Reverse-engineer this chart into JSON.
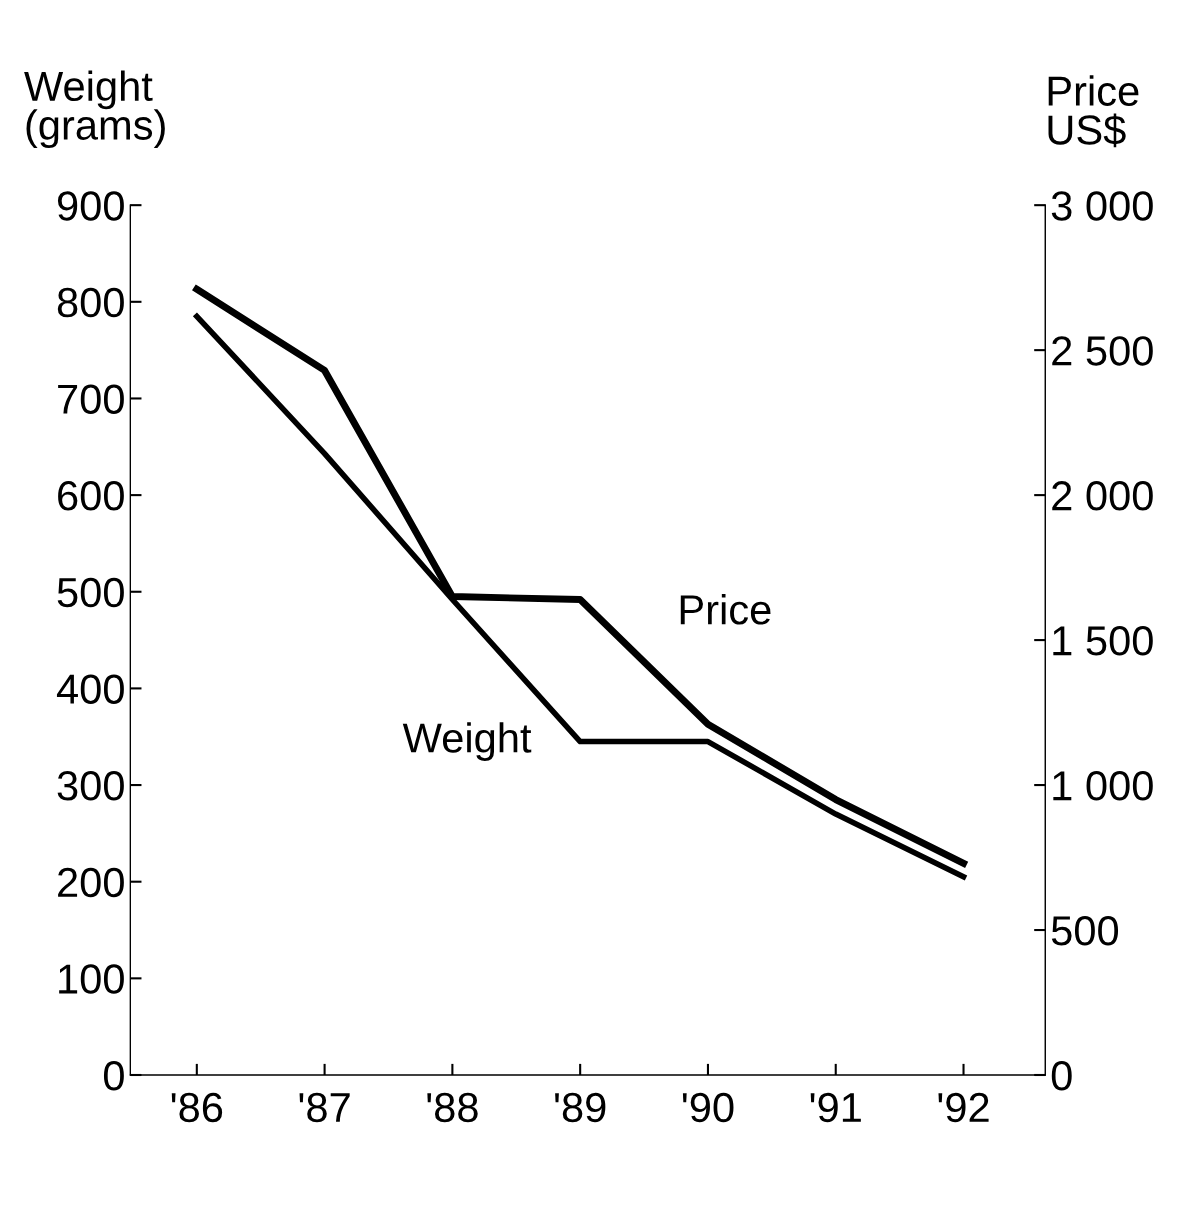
{
  "chart_data": {
    "type": "line",
    "x": [
      1986,
      1987,
      1988,
      1989,
      1990,
      1991,
      1992
    ],
    "xlim": [
      1985.48,
      1992.64
    ],
    "xticks": [
      {
        "value": 1986,
        "label": "'86"
      },
      {
        "value": 1987,
        "label": "'87"
      },
      {
        "value": 1988,
        "label": "'88"
      },
      {
        "value": 1989,
        "label": "'89"
      },
      {
        "value": 1990,
        "label": "'90"
      },
      {
        "value": 1991,
        "label": "'91"
      },
      {
        "value": 1992,
        "label": "'92"
      }
    ],
    "ylabel": "Weight\n(grams)",
    "y2label": "Price\nUS$",
    "ylim": [
      0,
      900
    ],
    "yticks": [
      0,
      100,
      200,
      300,
      400,
      500,
      600,
      700,
      800,
      900
    ],
    "y2lim": [
      0,
      3000
    ],
    "y2ticks": [
      0,
      500,
      {
        "value": 1000,
        "label": "1 000"
      },
      {
        "value": 1500,
        "label": "1 500"
      },
      {
        "value": 2000,
        "label": "2 000"
      },
      {
        "value": 2500,
        "label": "2 500"
      },
      {
        "value": 3000,
        "label": "3 000"
      }
    ],
    "series": [
      {
        "name": "Weight",
        "color": "#000000",
        "values": [
          785,
          643,
          492,
          345,
          345,
          270,
          205
        ]
      },
      {
        "name": "Price",
        "color": "#000000",
        "axis": "y2",
        "values": [
          2710,
          2430,
          1650,
          1640,
          1210,
          950,
          730
        ]
      }
    ],
    "legend": false,
    "grid": false,
    "marker": "none",
    "line_style": "solid"
  }
}
